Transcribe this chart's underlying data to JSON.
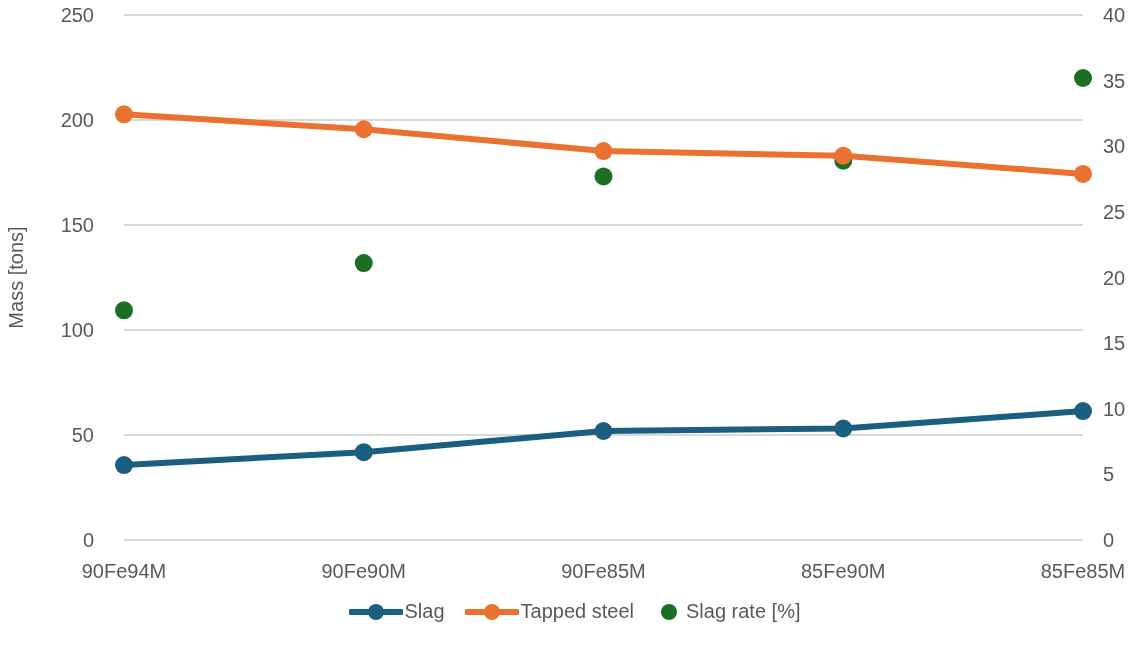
{
  "chart_data": {
    "type": "line",
    "ylabel": "Mass [tons]",
    "categories": [
      "90Fe94M",
      "90Fe90M",
      "90Fe85M",
      "85Fe90M",
      "85Fe85M"
    ],
    "series": [
      {
        "name": "Slag",
        "color": "#1a5e82",
        "values": [
          35.7,
          41.8,
          51.9,
          53.1,
          61.4
        ]
      },
      {
        "name": "Tapped steel",
        "color": "#ea7231",
        "values": [
          202.7,
          195.6,
          185.2,
          183,
          174.3
        ]
      },
      {
        "name": "Slag rate [%]",
        "type": "scatter",
        "axis": "y2",
        "color": "#1b6f24",
        "values": [
          17.5,
          21.1,
          27.7,
          28.9,
          35.2
        ]
      }
    ],
    "ylim": [
      0,
      250
    ],
    "yticks": [
      0,
      50,
      100,
      150,
      200,
      250
    ],
    "y2lim": [
      0,
      40
    ],
    "y2ticks": [
      0,
      5,
      10,
      15,
      20,
      25,
      30,
      35,
      40
    ],
    "grid": "y",
    "legend": "bottom",
    "marker": "circle",
    "line_style": "solid"
  }
}
